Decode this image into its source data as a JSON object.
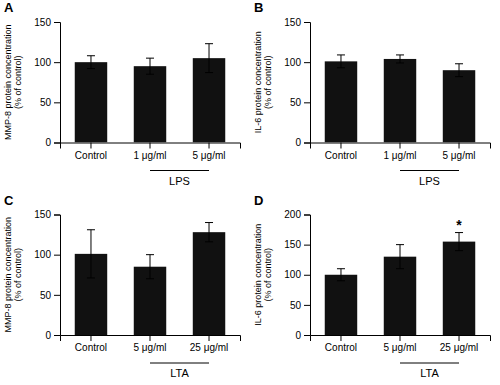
{
  "chart_data": [
    {
      "type": "bar",
      "title": "A",
      "ylabel": "MMP-8 protein concentration\n(% of control)",
      "xlabel": "LPS",
      "categories": [
        "Control",
        "1 μg/ml",
        "5 μg/ml"
      ],
      "values": [
        100,
        95,
        105
      ],
      "errors": [
        8,
        10,
        18
      ],
      "color": "#111111",
      "ylim": [
        0,
        150
      ],
      "yticks": [
        0,
        50,
        100,
        150
      ],
      "grid": false
    },
    {
      "type": "bar",
      "title": "B",
      "ylabel": "IL-6 protein concentration\n(% of control)",
      "xlabel": "LPS",
      "categories": [
        "Control",
        "1 μg/ml",
        "5 μg/ml"
      ],
      "values": [
        101,
        104,
        90
      ],
      "errors": [
        8,
        5,
        8
      ],
      "color": "#111111",
      "ylim": [
        0,
        150
      ],
      "yticks": [
        0,
        50,
        100,
        150
      ],
      "grid": false
    },
    {
      "type": "bar",
      "title": "C",
      "ylabel": "MMP-8 protein concentration\n(% of control)",
      "xlabel": "LTA",
      "categories": [
        "Control",
        "5 μg/ml",
        "25 μg/ml"
      ],
      "values": [
        101,
        85,
        128
      ],
      "errors": [
        30,
        15,
        12
      ],
      "color": "#111111",
      "ylim": [
        0,
        150
      ],
      "yticks": [
        0,
        50,
        100,
        150
      ],
      "grid": false
    },
    {
      "type": "bar",
      "title": "D",
      "ylabel": "IL-6 protein concentration\n(% of control)",
      "xlabel": "LTA",
      "categories": [
        "Control",
        "5 μg/ml",
        "25 μg/ml"
      ],
      "values": [
        100,
        130,
        155
      ],
      "errors": [
        10,
        20,
        15
      ],
      "color": "#111111",
      "ylim": [
        0,
        200
      ],
      "yticks": [
        0,
        50,
        100,
        150,
        200
      ],
      "grid": false,
      "annotations": [
        {
          "text": "*",
          "x": "25 μg/ml"
        }
      ]
    }
  ]
}
